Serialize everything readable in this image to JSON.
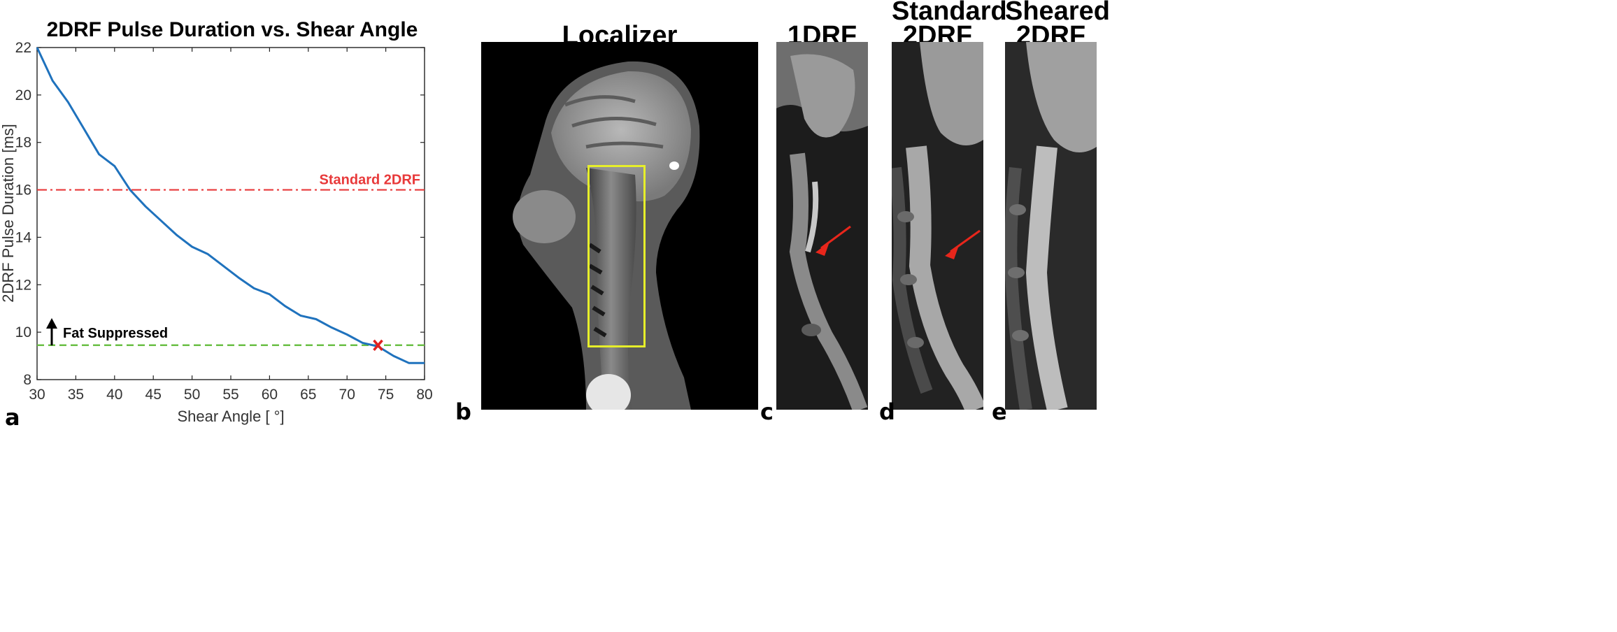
{
  "panel_labels": {
    "a": "a",
    "b": "b",
    "c": "c",
    "d": "d",
    "e": "e"
  },
  "image_titles": {
    "localizer": "Localizer",
    "one_drf": "1DRF",
    "standard_line1": "Standard",
    "standard_line2": "2DRF",
    "sheared_line1": "Sheared",
    "sheared_line2": "2DRF"
  },
  "colors": {
    "curve": "#1f72bd",
    "standard_line": "#e8393a",
    "fat_line": "#6abf45",
    "marker": "#e02020",
    "roi_box": "#e6ee2a",
    "arrow": "#e8261b"
  },
  "chart_data": {
    "type": "line",
    "title": "2DRF Pulse Duration vs. Shear Angle",
    "xlabel": "Shear Angle [ °]",
    "ylabel": "2DRF Pulse Duration [ms]",
    "xlim": [
      30,
      80
    ],
    "ylim": [
      8,
      22
    ],
    "xticks": [
      30,
      35,
      40,
      45,
      50,
      55,
      60,
      65,
      70,
      75,
      80
    ],
    "yticks": [
      8,
      10,
      12,
      14,
      16,
      18,
      20,
      22
    ],
    "grid": false,
    "series": [
      {
        "x": [
          30,
          32,
          34,
          36,
          38,
          40,
          42,
          44,
          46,
          48,
          50,
          52,
          54,
          56,
          58,
          60,
          62,
          64,
          66,
          68,
          70,
          72,
          74,
          76,
          78,
          80
        ],
        "y": [
          22.0,
          20.6,
          19.7,
          18.6,
          17.5,
          17.0,
          16.0,
          15.3,
          14.7,
          14.1,
          13.6,
          13.3,
          12.8,
          12.3,
          11.85,
          11.6,
          11.1,
          10.7,
          10.55,
          10.2,
          9.9,
          9.55,
          9.4,
          9.0,
          8.7,
          8.7
        ]
      }
    ],
    "reference_lines": [
      {
        "name": "Standard 2DRF",
        "y": 16.0,
        "style": "dashdot"
      },
      {
        "name": "Fat Suppressed",
        "y": 9.45,
        "style": "dashed"
      }
    ],
    "markers": [
      {
        "x": 74,
        "y": 9.45,
        "symbol": "x"
      }
    ]
  }
}
